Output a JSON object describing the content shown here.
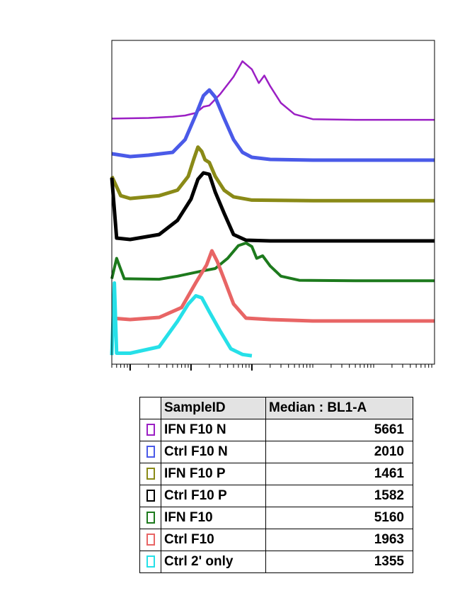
{
  "chart_data": {
    "type": "line",
    "title": "",
    "xlabel": "",
    "ylabel": "",
    "x_scale": "log",
    "xlim": [
      0.5,
      100000
    ],
    "grid": false,
    "series": [
      {
        "name": "IFN F10 N",
        "color": "#9b1fc4",
        "width": 2.5,
        "points": [
          [
            0.5,
            0.03
          ],
          [
            2,
            0.04
          ],
          [
            5,
            0.06
          ],
          [
            8,
            0.08
          ],
          [
            12,
            0.12
          ],
          [
            16,
            0.22
          ],
          [
            20,
            0.24
          ],
          [
            30,
            0.42
          ],
          [
            50,
            0.7
          ],
          [
            70,
            0.95
          ],
          [
            100,
            0.82
          ],
          [
            130,
            0.6
          ],
          [
            160,
            0.72
          ],
          [
            200,
            0.55
          ],
          [
            300,
            0.28
          ],
          [
            500,
            0.1
          ],
          [
            1000,
            0.02
          ],
          [
            5000,
            0.01
          ],
          [
            100000,
            0.01
          ]
        ]
      },
      {
        "name": "Ctrl F10 N",
        "color": "#4a5ae8",
        "width": 5,
        "points": [
          [
            0.5,
            0.1
          ],
          [
            1,
            0.06
          ],
          [
            2,
            0.08
          ],
          [
            5,
            0.12
          ],
          [
            8,
            0.3
          ],
          [
            12,
            0.65
          ],
          [
            16,
            0.92
          ],
          [
            20,
            1.0
          ],
          [
            25,
            0.9
          ],
          [
            35,
            0.6
          ],
          [
            50,
            0.3
          ],
          [
            70,
            0.12
          ],
          [
            100,
            0.05
          ],
          [
            200,
            0.02
          ],
          [
            1000,
            0.01
          ],
          [
            100000,
            0.01
          ]
        ]
      },
      {
        "name": "IFN F10 P",
        "color": "#8a8a17",
        "width": 5,
        "points": [
          [
            0.5,
            0.45
          ],
          [
            0.7,
            0.1
          ],
          [
            1,
            0.05
          ],
          [
            3,
            0.1
          ],
          [
            6,
            0.2
          ],
          [
            9,
            0.45
          ],
          [
            11,
            0.75
          ],
          [
            13,
            0.98
          ],
          [
            15,
            0.9
          ],
          [
            17,
            0.75
          ],
          [
            20,
            0.7
          ],
          [
            25,
            0.45
          ],
          [
            35,
            0.2
          ],
          [
            50,
            0.08
          ],
          [
            100,
            0.02
          ],
          [
            1000,
            0.01
          ],
          [
            100000,
            0.01
          ]
        ]
      },
      {
        "name": "Ctrl F10 P",
        "color": "#000000",
        "width": 5,
        "points": [
          [
            0.5,
            0.9
          ],
          [
            0.6,
            0.05
          ],
          [
            1,
            0.03
          ],
          [
            3,
            0.1
          ],
          [
            6,
            0.3
          ],
          [
            10,
            0.6
          ],
          [
            13,
            0.88
          ],
          [
            16,
            0.97
          ],
          [
            20,
            0.95
          ],
          [
            25,
            0.7
          ],
          [
            35,
            0.4
          ],
          [
            50,
            0.1
          ],
          [
            80,
            0.02
          ],
          [
            200,
            0.01
          ],
          [
            100000,
            0.01
          ]
        ]
      },
      {
        "name": "IFN F10",
        "color": "#1d7a1d",
        "width": 4,
        "points": [
          [
            0.5,
            0.05
          ],
          [
            0.6,
            0.45
          ],
          [
            0.8,
            0.05
          ],
          [
            3,
            0.04
          ],
          [
            6,
            0.1
          ],
          [
            15,
            0.2
          ],
          [
            25,
            0.25
          ],
          [
            40,
            0.45
          ],
          [
            60,
            0.7
          ],
          [
            80,
            0.75
          ],
          [
            100,
            0.68
          ],
          [
            120,
            0.45
          ],
          [
            150,
            0.5
          ],
          [
            200,
            0.3
          ],
          [
            300,
            0.1
          ],
          [
            600,
            0.02
          ],
          [
            5000,
            0.01
          ],
          [
            100000,
            0.01
          ]
        ]
      },
      {
        "name": "Ctrl F10",
        "color": "#e86565",
        "width": 5,
        "points": [
          [
            0.5,
            0.05
          ],
          [
            1,
            0.03
          ],
          [
            3,
            0.06
          ],
          [
            7,
            0.2
          ],
          [
            12,
            0.55
          ],
          [
            18,
            0.8
          ],
          [
            22,
            1.0
          ],
          [
            27,
            0.85
          ],
          [
            35,
            0.6
          ],
          [
            50,
            0.25
          ],
          [
            80,
            0.05
          ],
          [
            200,
            0.03
          ],
          [
            1000,
            0.01
          ],
          [
            100000,
            0.01
          ]
        ]
      },
      {
        "name": "Ctrl 2' only",
        "color": "#26e0e8",
        "width": 5,
        "points": [
          [
            0.5,
            0.02
          ],
          [
            0.55,
            1.15
          ],
          [
            0.6,
            0.05
          ],
          [
            1,
            0.05
          ],
          [
            3,
            0.15
          ],
          [
            6,
            0.55
          ],
          [
            9,
            0.82
          ],
          [
            12,
            0.95
          ],
          [
            15,
            0.92
          ],
          [
            20,
            0.7
          ],
          [
            30,
            0.4
          ],
          [
            45,
            0.12
          ],
          [
            70,
            0.03
          ],
          [
            100,
            0.01
          ]
        ]
      }
    ],
    "table": {
      "headers": [
        "",
        "SampleID",
        "Median : BL1-A"
      ],
      "rows": [
        {
          "sample": "IFN F10 N",
          "median": "5661",
          "color": "#9b1fc4"
        },
        {
          "sample": "Ctrl F10 N",
          "median": "2010",
          "color": "#4a5ae8"
        },
        {
          "sample": "IFN F10 P",
          "median": "1461",
          "color": "#8a8a17"
        },
        {
          "sample": "Ctrl F10 P",
          "median": "1582",
          "color": "#000000"
        },
        {
          "sample": "IFN F10",
          "median": "5160",
          "color": "#1d7a1d"
        },
        {
          "sample": "Ctrl F10",
          "median": "1963",
          "color": "#e86565"
        },
        {
          "sample": "Ctrl 2' only",
          "median": "1355",
          "color": "#26e0e8"
        }
      ]
    }
  }
}
